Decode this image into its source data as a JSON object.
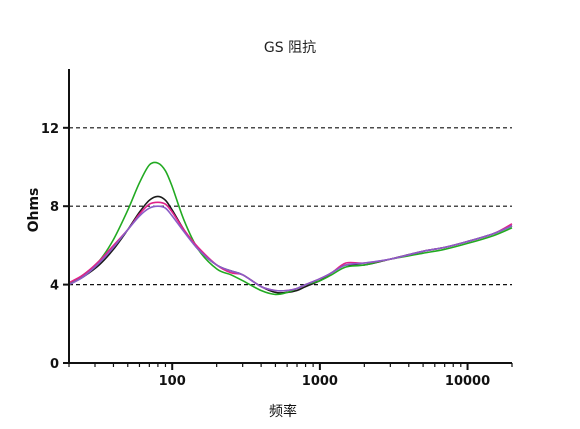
{
  "chart_data": {
    "type": "line",
    "title": "GS 阻抗",
    "xlabel": "频率",
    "ylabel": "Ohms",
    "x_scale": "log",
    "xlim": [
      20,
      20000
    ],
    "ylim": [
      0,
      15
    ],
    "xticks": [
      100,
      1000,
      10000
    ],
    "xtick_labels": [
      "100",
      "1000",
      "10000"
    ],
    "yticks": [
      0,
      4,
      8,
      12
    ],
    "ytick_labels": [
      "0",
      "4",
      "8",
      "12"
    ],
    "grid": "dashed horizontal at 4, 8, 12",
    "legend": "none",
    "series": [
      {
        "color": "#1a1a1a",
        "x": [
          20,
          25,
          32,
          40,
          50,
          60,
          70,
          80,
          90,
          100,
          120,
          150,
          200,
          250,
          300,
          400,
          500,
          600,
          700,
          800,
          1000,
          1200,
          1500,
          2000,
          3000,
          5000,
          7000,
          10000,
          15000,
          20000
        ],
        "y": [
          4.0,
          4.4,
          5.0,
          5.8,
          6.8,
          7.7,
          8.3,
          8.5,
          8.3,
          7.8,
          6.8,
          5.8,
          5.0,
          4.7,
          4.5,
          3.9,
          3.6,
          3.6,
          3.7,
          3.9,
          4.2,
          4.6,
          5.0,
          5.0,
          5.3,
          5.7,
          5.9,
          6.2,
          6.6,
          7.0
        ]
      },
      {
        "color": "#22aa22",
        "x": [
          20,
          25,
          32,
          40,
          50,
          60,
          70,
          80,
          90,
          100,
          120,
          150,
          200,
          250,
          300,
          400,
          500,
          600,
          700,
          800,
          1000,
          1200,
          1500,
          2000,
          3000,
          5000,
          7000,
          10000,
          15000,
          20000
        ],
        "y": [
          4.0,
          4.5,
          5.2,
          6.3,
          7.8,
          9.2,
          10.1,
          10.2,
          9.8,
          9.0,
          7.3,
          5.8,
          4.8,
          4.5,
          4.2,
          3.7,
          3.5,
          3.6,
          3.8,
          4.0,
          4.2,
          4.5,
          4.9,
          5.0,
          5.3,
          5.6,
          5.8,
          6.1,
          6.5,
          6.9
        ]
      },
      {
        "color": "#e0218a",
        "x": [
          20,
          25,
          32,
          40,
          50,
          60,
          70,
          80,
          90,
          100,
          120,
          150,
          200,
          250,
          300,
          400,
          500,
          600,
          700,
          800,
          1000,
          1200,
          1500,
          2000,
          3000,
          5000,
          7000,
          10000,
          15000,
          20000
        ],
        "y": [
          4.1,
          4.5,
          5.2,
          6.0,
          6.8,
          7.6,
          8.1,
          8.2,
          8.1,
          7.7,
          6.8,
          5.9,
          5.0,
          4.6,
          4.5,
          3.9,
          3.7,
          3.7,
          3.8,
          4.0,
          4.3,
          4.6,
          5.1,
          5.1,
          5.3,
          5.7,
          5.9,
          6.2,
          6.6,
          7.1
        ]
      },
      {
        "color": "#8a5cc7",
        "x": [
          20,
          25,
          32,
          40,
          50,
          60,
          70,
          80,
          90,
          100,
          120,
          150,
          200,
          250,
          300,
          400,
          500,
          600,
          700,
          800,
          1000,
          1200,
          1500,
          2000,
          3000,
          5000,
          7000,
          10000,
          15000,
          20000
        ],
        "y": [
          4.0,
          4.4,
          5.1,
          5.9,
          6.8,
          7.5,
          7.9,
          8.0,
          7.9,
          7.5,
          6.7,
          5.8,
          5.0,
          4.7,
          4.5,
          3.9,
          3.7,
          3.7,
          3.8,
          4.0,
          4.3,
          4.6,
          5.0,
          5.1,
          5.3,
          5.7,
          5.9,
          6.2,
          6.6,
          7.0
        ]
      }
    ]
  }
}
